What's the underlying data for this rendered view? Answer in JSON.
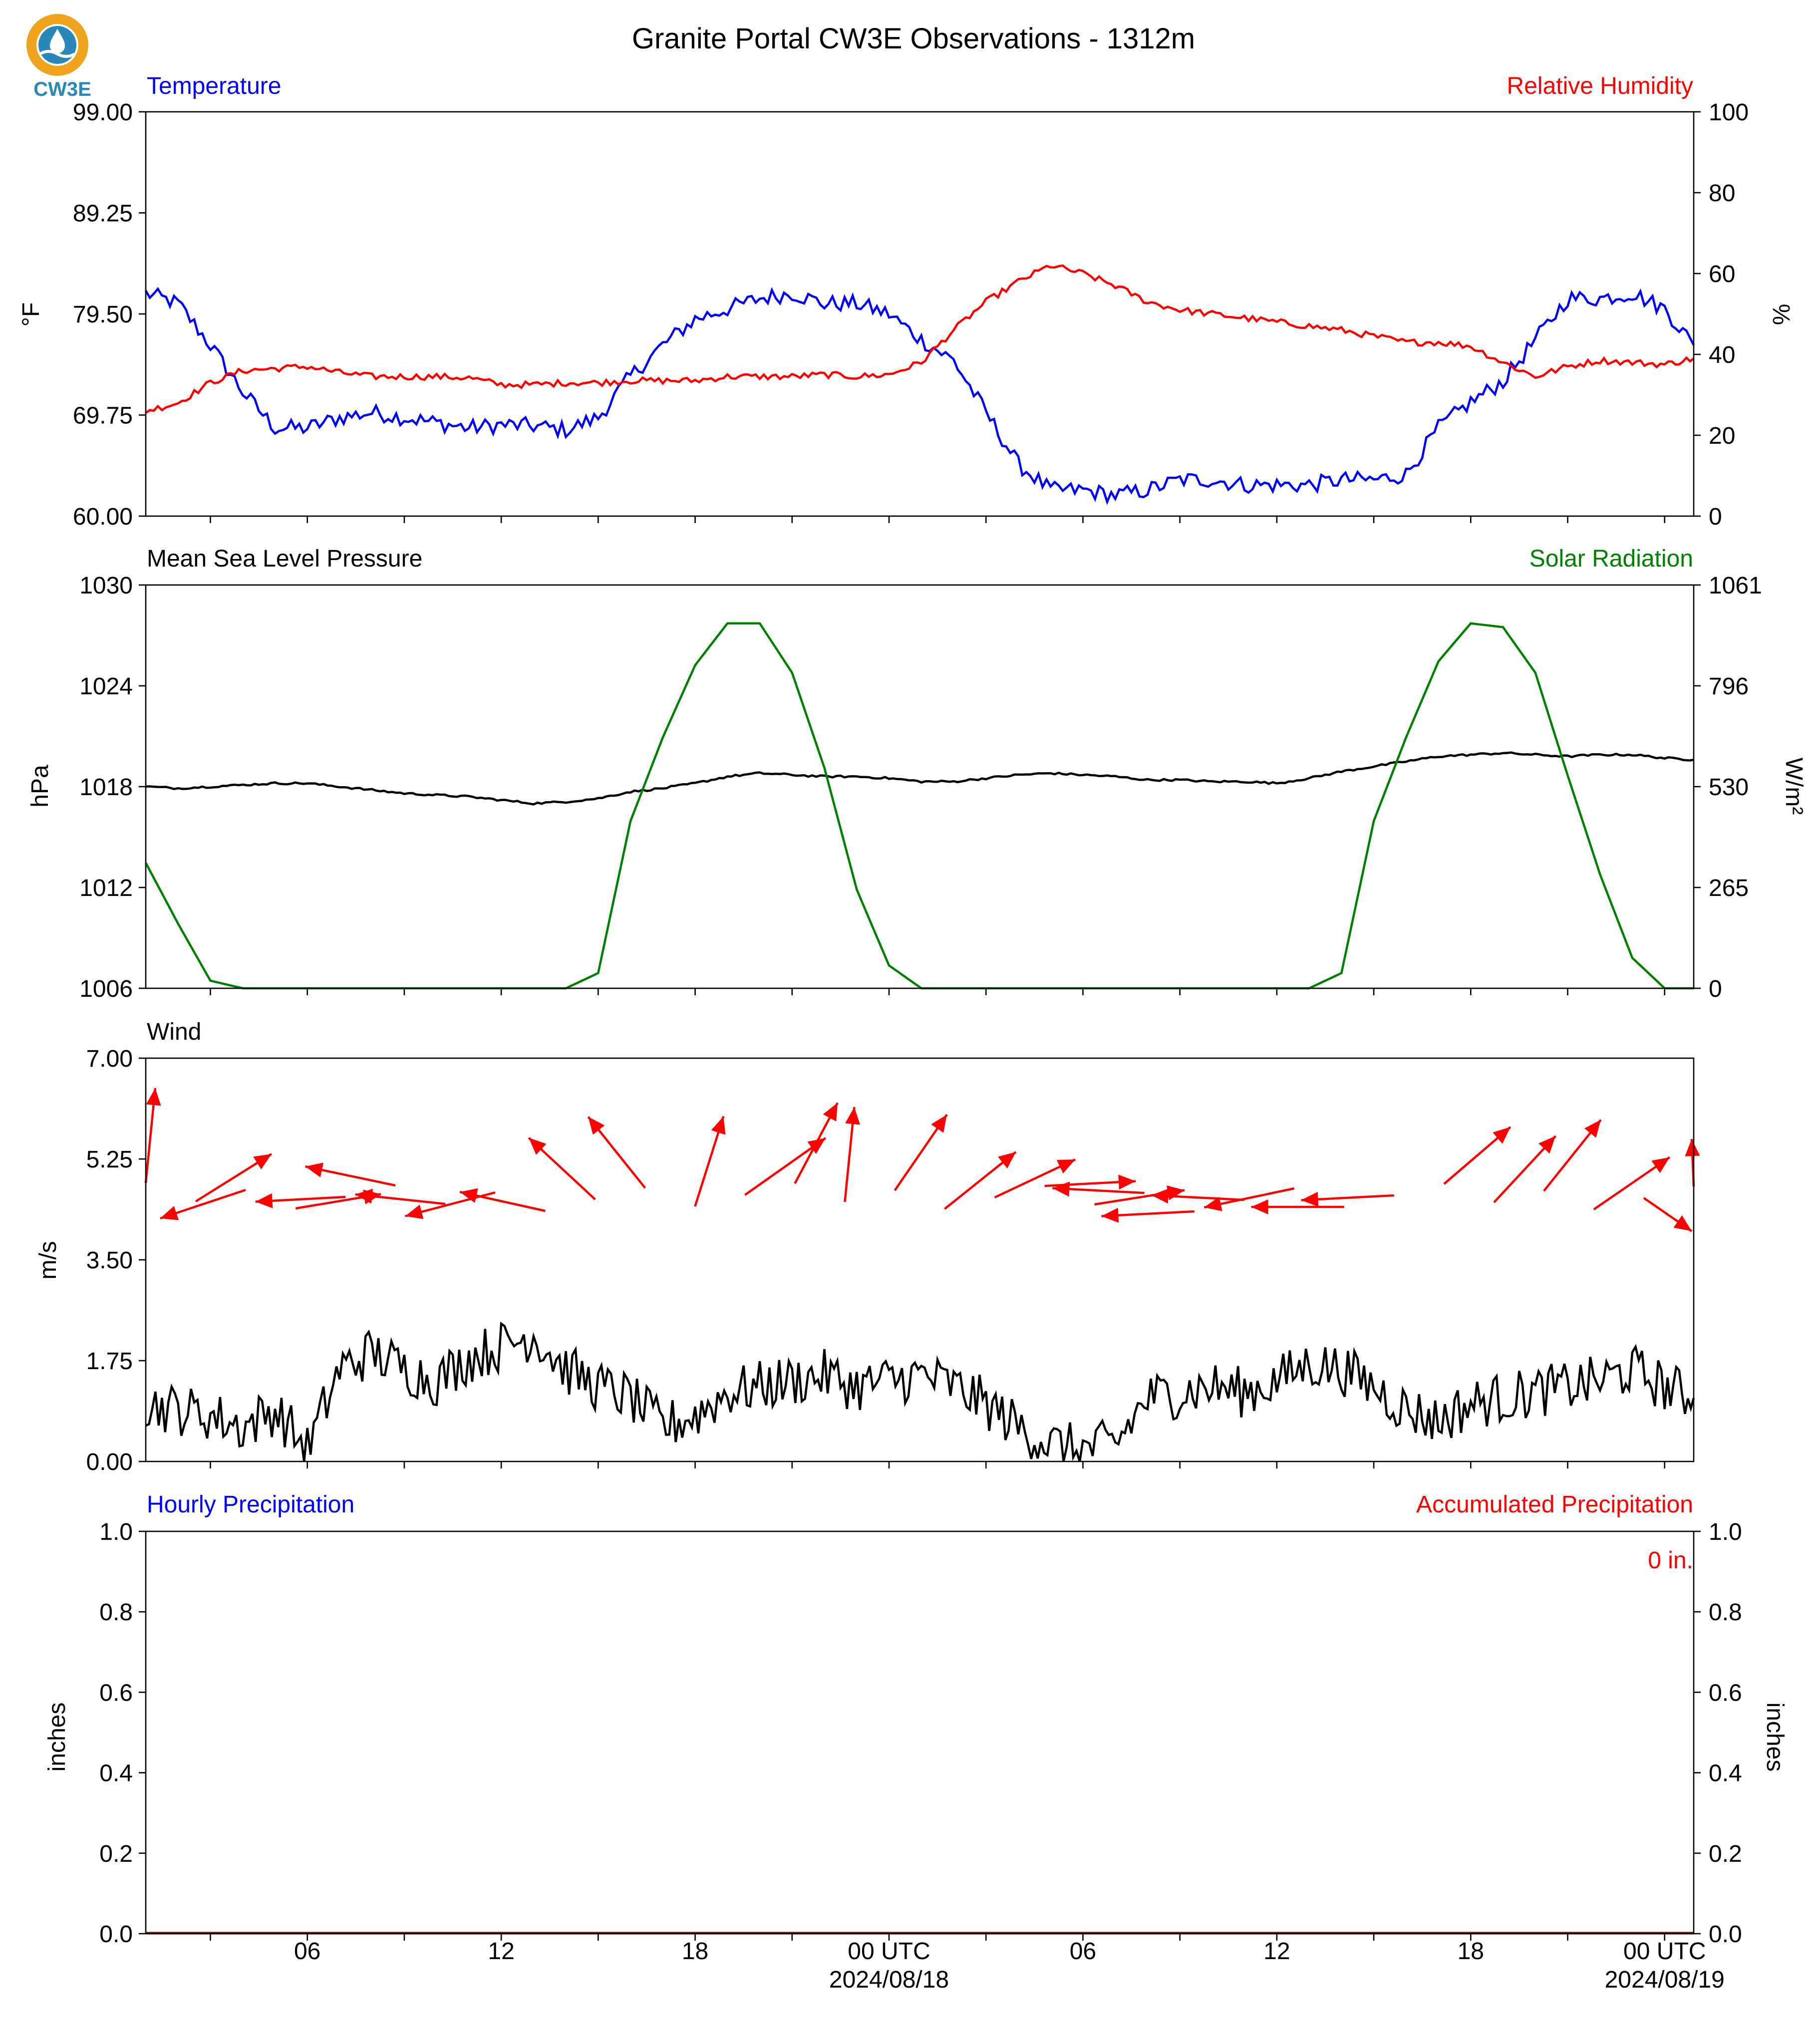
{
  "title": "Granite Portal CW3E Observations - 1312m",
  "logo": {
    "text": "CW3E",
    "ring_color": "#f0a31c",
    "wave_color": "#2a88b8"
  },
  "colors": {
    "temperature": "#0000ff",
    "humidity": "#ff0000",
    "pressure": "#000000",
    "solar": "#008000",
    "wind_speed": "#000000",
    "wind_arrow": "#ff0000",
    "hourly_precip": "#0000ff",
    "accum_precip": "#ff0000"
  },
  "x_axis": {
    "tick_labels": [
      "06",
      "12",
      "18",
      "00 UTC",
      "06",
      "12",
      "18",
      "00 UTC"
    ],
    "date_labels": [
      "2024/08/18",
      "2024/08/19"
    ],
    "range_hours": [
      1,
      48.9
    ]
  },
  "chart_data": [
    {
      "type": "line",
      "panel": "temperature-humidity",
      "left_title": "Temperature",
      "right_title": "Relative Humidity",
      "ylabel": "°F",
      "ylabel_right": "%",
      "ylim": [
        60,
        99
      ],
      "ylim_right": [
        0,
        100
      ],
      "yticks": [
        "99.00",
        "89.25",
        "79.50",
        "69.75",
        "60.00"
      ],
      "yticks_right": [
        "100",
        "80",
        "60",
        "40",
        "20",
        "0"
      ],
      "x_hours": [
        1,
        2,
        3,
        4,
        5,
        6,
        7,
        8,
        9,
        10,
        11,
        12,
        13,
        14,
        15,
        16,
        17,
        18,
        19,
        20,
        21,
        22,
        23,
        24,
        25,
        26,
        27,
        28,
        29,
        30,
        31,
        32,
        33,
        34,
        35,
        36,
        37,
        38,
        39,
        40,
        41,
        42,
        43,
        44,
        45,
        46,
        47,
        48,
        48.9
      ],
      "series": [
        {
          "name": "Temperature",
          "values": [
            81.5,
            80.5,
            76.5,
            72.0,
            68.5,
            68.5,
            69.5,
            70.0,
            69.5,
            69.0,
            68.5,
            68.8,
            68.7,
            68.3,
            69.5,
            73.5,
            76.5,
            79.0,
            80.0,
            81.0,
            81.5,
            80.5,
            80.5,
            79.5,
            77.0,
            75.0,
            70.0,
            65.0,
            62.5,
            62.5,
            62.0,
            62.5,
            63.5,
            63.5,
            63.0,
            63.0,
            63.0,
            63.5,
            63.5,
            64.0,
            68.5,
            71.0,
            73.0,
            77.0,
            81.0,
            81.0,
            81.5,
            80.0,
            76.5
          ]
        },
        {
          "name": "Relative Humidity",
          "values": [
            26,
            28,
            33,
            36,
            36.5,
            37,
            35.5,
            34.5,
            34.5,
            34.5,
            34.2,
            32.5,
            32.5,
            33,
            33,
            33.5,
            33.5,
            33.5,
            34.5,
            34.5,
            34.5,
            35,
            34.5,
            35,
            38,
            46,
            53,
            58,
            62,
            60,
            57,
            53,
            51,
            50,
            49,
            48,
            47,
            46,
            44.5,
            43,
            43,
            42,
            38,
            34.5,
            37,
            38.5,
            38,
            37.5,
            39
          ]
        }
      ]
    },
    {
      "type": "line",
      "panel": "pressure-solar",
      "left_title": "Mean Sea Level Pressure",
      "right_title": "Solar Radiation",
      "ylabel": "hPa",
      "ylabel_right": "W/m²",
      "ylim": [
        1006,
        1030
      ],
      "ylim_right": [
        0,
        1061
      ],
      "yticks": [
        "1030",
        "1024",
        "1018",
        "1012",
        "1006"
      ],
      "yticks_right": [
        "1061",
        "796",
        "530",
        "265",
        "0"
      ],
      "x_hours": [
        1,
        2,
        3,
        4,
        5,
        6,
        7,
        8,
        9,
        10,
        11,
        12,
        13,
        14,
        15,
        16,
        17,
        18,
        19,
        20,
        21,
        22,
        23,
        24,
        25,
        26,
        27,
        28,
        29,
        30,
        31,
        32,
        33,
        34,
        35,
        36,
        37,
        38,
        39,
        40,
        41,
        42,
        43,
        44,
        45,
        46,
        47,
        48,
        48.9
      ],
      "series": [
        {
          "name": "Mean Sea Level Pressure",
          "values": [
            1018.0,
            1017.9,
            1018.0,
            1018.1,
            1018.2,
            1018.2,
            1018.0,
            1017.8,
            1017.6,
            1017.5,
            1017.4,
            1017.2,
            1017.0,
            1017.1,
            1017.3,
            1017.7,
            1017.9,
            1018.2,
            1018.6,
            1018.8,
            1018.7,
            1018.6,
            1018.6,
            1018.5,
            1018.3,
            1018.3,
            1018.5,
            1018.7,
            1018.8,
            1018.7,
            1018.6,
            1018.4,
            1018.4,
            1018.3,
            1018.3,
            1018.2,
            1018.5,
            1018.9,
            1019.2,
            1019.5,
            1019.8,
            1019.9,
            1020.0,
            1019.9,
            1019.8,
            1019.9,
            1019.9,
            1019.7,
            1019.6
          ]
        },
        {
          "name": "Solar Radiation",
          "values": [
            330,
            170,
            20,
            0,
            0,
            0,
            0,
            0,
            0,
            0,
            0,
            0,
            0,
            0,
            40,
            440,
            660,
            850,
            960,
            960,
            830,
            580,
            260,
            60,
            0,
            0,
            0,
            0,
            0,
            0,
            0,
            0,
            0,
            0,
            0,
            0,
            0,
            40,
            440,
            660,
            860,
            960,
            950,
            830,
            560,
            300,
            80,
            0,
            0
          ]
        }
      ]
    },
    {
      "type": "line",
      "panel": "wind",
      "left_title": "Wind",
      "ylabel": "m/s",
      "ylim": [
        0,
        7
      ],
      "yticks": [
        "7.00",
        "5.25",
        "3.50",
        "1.75",
        "0.00"
      ],
      "x_hours": [
        1,
        2,
        3,
        4,
        5,
        6,
        7,
        8,
        9,
        10,
        11,
        12,
        13,
        14,
        15,
        16,
        17,
        18,
        19,
        20,
        21,
        22,
        23,
        24,
        25,
        26,
        27,
        28,
        29,
        30,
        31,
        32,
        33,
        34,
        35,
        36,
        37,
        38,
        39,
        40,
        41,
        42,
        43,
        44,
        45,
        46,
        47,
        48,
        48.9
      ],
      "series": [
        {
          "name": "Wind Speed",
          "values": [
            1.0,
            0.9,
            0.8,
            0.6,
            0.9,
            0.2,
            1.6,
            1.9,
            1.6,
            1.4,
            1.8,
            2.0,
            2.2,
            1.6,
            1.3,
            1.1,
            0.6,
            0.8,
            1.2,
            1.3,
            1.4,
            1.5,
            1.3,
            1.4,
            1.5,
            1.3,
            1.0,
            0.6,
            0.3,
            0.2,
            0.3,
            1.1,
            1.2,
            1.3,
            1.2,
            1.4,
            1.7,
            1.6,
            1.3,
            0.9,
            0.7,
            1.0,
            1.1,
            1.2,
            1.3,
            1.4,
            1.6,
            1.3,
            1.1
          ]
        }
      ],
      "arrows_uv": [
        [
          0.1,
          1
        ],
        [
          0.8,
          0.5
        ],
        [
          -0.9,
          -0.3
        ],
        [
          0.9,
          0.15
        ],
        [
          -0.95,
          -0.05
        ],
        [
          -0.95,
          0.2
        ],
        [
          -0.95,
          0.1
        ],
        [
          -0.95,
          -0.25
        ],
        [
          -0.9,
          0.2
        ],
        [
          -0.7,
          0.65
        ],
        [
          -0.6,
          0.75
        ],
        [
          0.3,
          0.95
        ],
        [
          0.85,
          0.6
        ],
        [
          0.45,
          0.85
        ],
        [
          0.1,
          1
        ],
        [
          0.55,
          0.8
        ],
        [
          0.75,
          0.6
        ],
        [
          0.85,
          0.4
        ],
        [
          0.96,
          0.05
        ],
        [
          0.95,
          0.15
        ],
        [
          -0.97,
          0.05
        ],
        [
          -0.98,
          -0.05
        ],
        [
          -0.98,
          0.05
        ],
        [
          -0.95,
          -0.2
        ],
        [
          -0.98,
          0
        ],
        [
          -0.98,
          -0.05
        ],
        [
          0.7,
          0.6
        ],
        [
          0.65,
          0.7
        ],
        [
          0.6,
          0.75
        ],
        [
          0.8,
          0.55
        ],
        [
          0.9,
          -0.35
        ],
        [
          0.8,
          0.5
        ]
      ]
    },
    {
      "type": "bar",
      "panel": "precipitation",
      "left_title": "Hourly Precipitation",
      "right_title": "Accumulated Precipitation",
      "ylabel": "inches",
      "ylabel_right": "inches",
      "ylim": [
        0,
        1
      ],
      "ylim_right": [
        0,
        1
      ],
      "yticks": [
        "1.0",
        "0.8",
        "0.6",
        "0.4",
        "0.2",
        "0.0"
      ],
      "yticks_right": [
        "1.0",
        "0.8",
        "0.6",
        "0.4",
        "0.2",
        "0.0"
      ],
      "total_label": "0 in.",
      "series": [
        {
          "name": "Hourly Precipitation",
          "values": [
            0
          ]
        },
        {
          "name": "Accumulated Precipitation",
          "values": [
            0
          ]
        }
      ]
    }
  ]
}
